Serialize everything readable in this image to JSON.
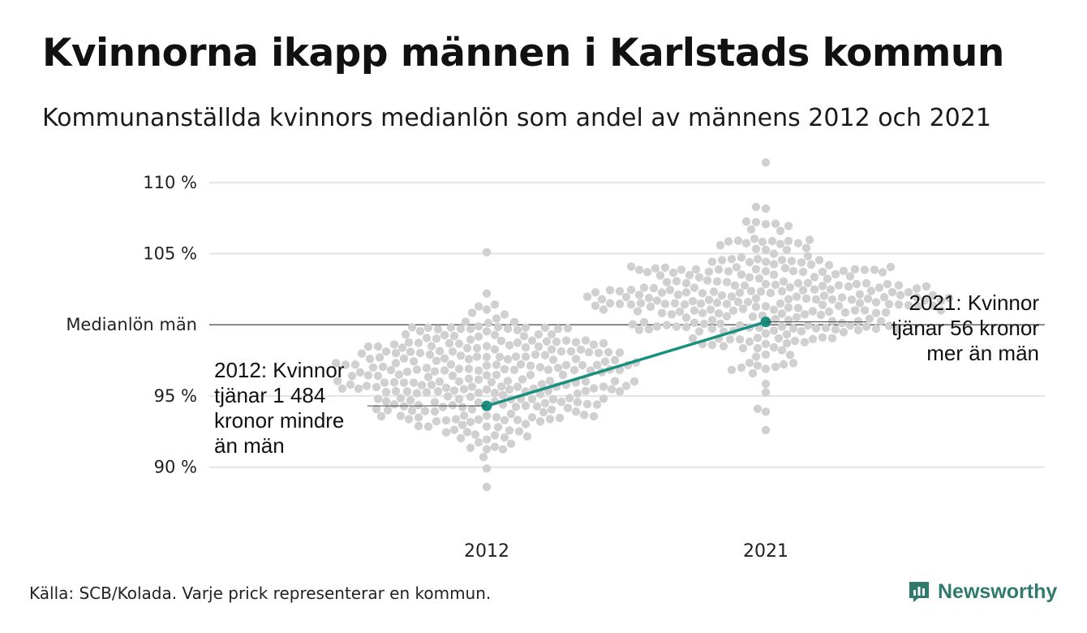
{
  "title": "Kvinnorna ikapp männen i Karlstads kommun",
  "subtitle": "Kommunanställda kvinnors medianlön som andel av männens 2012 och 2021",
  "source": "Källa: SCB/Kolada. Varje prick representerar en kommun.",
  "brand": {
    "name": "Newsworthy",
    "icon": "newsworthy-logo-icon",
    "color": "#2f7a6d"
  },
  "chart_data": {
    "type": "scatter",
    "title": "Kvinnorna ikapp männen i Karlstads kommun",
    "subtitle": "Kommunanställda kvinnors medianlön som andel av männens 2012 och 2021",
    "y_ticks": [
      {
        "value": 90,
        "label": "90 %"
      },
      {
        "value": 95,
        "label": "95 %"
      },
      {
        "value": 100,
        "label": "Medianlön män"
      },
      {
        "value": 105,
        "label": "105 %"
      },
      {
        "value": 110,
        "label": "110 %"
      }
    ],
    "ylim": [
      85.3,
      111.7
    ],
    "categories": [
      "2012",
      "2021"
    ],
    "grid": true,
    "reference_line": {
      "value": 100,
      "label": "Medianlön män"
    },
    "beeswarm": [
      {
        "category": "2012",
        "center": 96.2,
        "spread": 2.4,
        "min": 88.6,
        "max": 105.1,
        "count": 290
      },
      {
        "category": "2021",
        "center": 101.9,
        "spread": 2.3,
        "min": 92.6,
        "max": 111.4,
        "count": 290
      }
    ],
    "highlight_series": {
      "name": "Karlstads kommun",
      "color": "#1a8f7f",
      "points": [
        {
          "x": "2012",
          "y": 94.3
        },
        {
          "x": "2021",
          "y": 100.2
        }
      ]
    },
    "dot_color": "#d0d0d0",
    "annotations": [
      {
        "x": "2012",
        "lines": [
          "2012: Kvinnor",
          "tjänar 1 484",
          "kronor mindre",
          "än män"
        ]
      },
      {
        "x": "2021",
        "lines": [
          "2021: Kvinnor",
          "tjänar 56 kronor",
          "mer än män"
        ]
      }
    ]
  }
}
